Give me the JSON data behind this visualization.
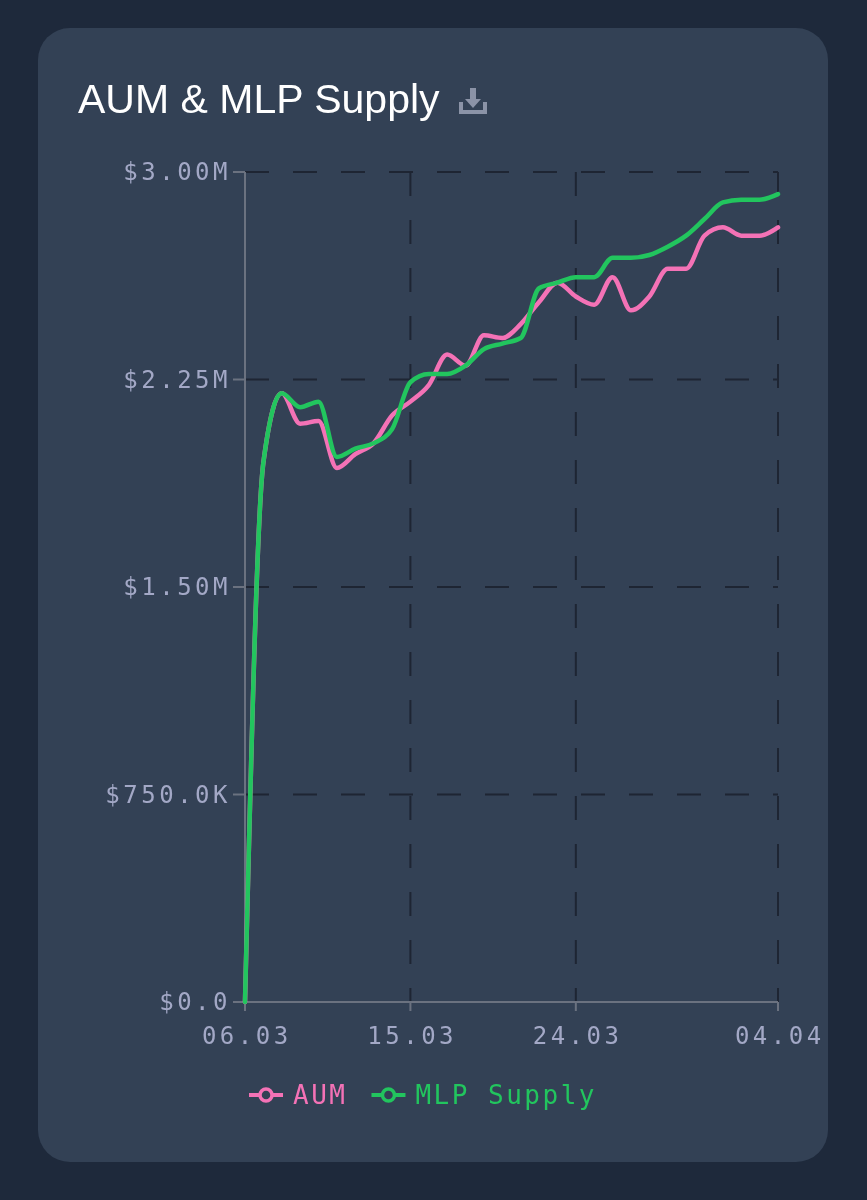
{
  "chart_data": {
    "type": "line",
    "title": "AUM & MLP Supply",
    "x": [
      "--03-06",
      "--03-07",
      "--03-08",
      "--03-09",
      "--03-10",
      "--03-11",
      "--03-12",
      "--03-13",
      "--03-14",
      "--03-15",
      "--03-16",
      "--03-17",
      "--03-18",
      "--03-19",
      "--03-20",
      "--03-21",
      "--03-22",
      "--03-23",
      "--03-24",
      "--03-25",
      "--03-26",
      "--03-27",
      "--03-28",
      "--03-29",
      "--03-30",
      "--03-31",
      "--04-01",
      "--04-02",
      "--04-03",
      "--04-04"
    ],
    "xlim": [
      "--03-06",
      "--04-04"
    ],
    "xticks": [
      {
        "value": "--03-06",
        "label": "06.03"
      },
      {
        "value": "--03-15",
        "label": "15.03"
      },
      {
        "value": "--03-24",
        "label": "24.03"
      },
      {
        "value": "--04-04",
        "label": "04.04"
      }
    ],
    "ylim": [
      0,
      3000000
    ],
    "yticks": [
      {
        "value": 0,
        "label": "$0.0"
      },
      {
        "value": 750000,
        "label": "$750.0K"
      },
      {
        "value": 1500000,
        "label": "$1.50M"
      },
      {
        "value": 2250000,
        "label": "$2.25M"
      },
      {
        "value": 3000000,
        "label": "$3.00M"
      }
    ],
    "grid": true,
    "legend": "bottom",
    "series": [
      {
        "name": "AUM",
        "color": "#f472b6",
        "values": [
          0,
          1950000,
          2200000,
          2090000,
          2100000,
          1930000,
          1980000,
          2020000,
          2120000,
          2170000,
          2230000,
          2340000,
          2300000,
          2410000,
          2400000,
          2450000,
          2530000,
          2600000,
          2550000,
          2520000,
          2620000,
          2500000,
          2550000,
          2650000,
          2650000,
          2770000,
          2800000,
          2770000,
          2770000,
          2800000
        ]
      },
      {
        "name": "MLP Supply",
        "color": "#22c55e",
        "values": [
          0,
          1950000,
          2200000,
          2150000,
          2170000,
          1970000,
          2000000,
          2020000,
          2070000,
          2240000,
          2270000,
          2270000,
          2300000,
          2360000,
          2380000,
          2400000,
          2580000,
          2600000,
          2620000,
          2620000,
          2690000,
          2690000,
          2700000,
          2730000,
          2770000,
          2830000,
          2890000,
          2900000,
          2900000,
          2920000
        ]
      }
    ]
  }
}
